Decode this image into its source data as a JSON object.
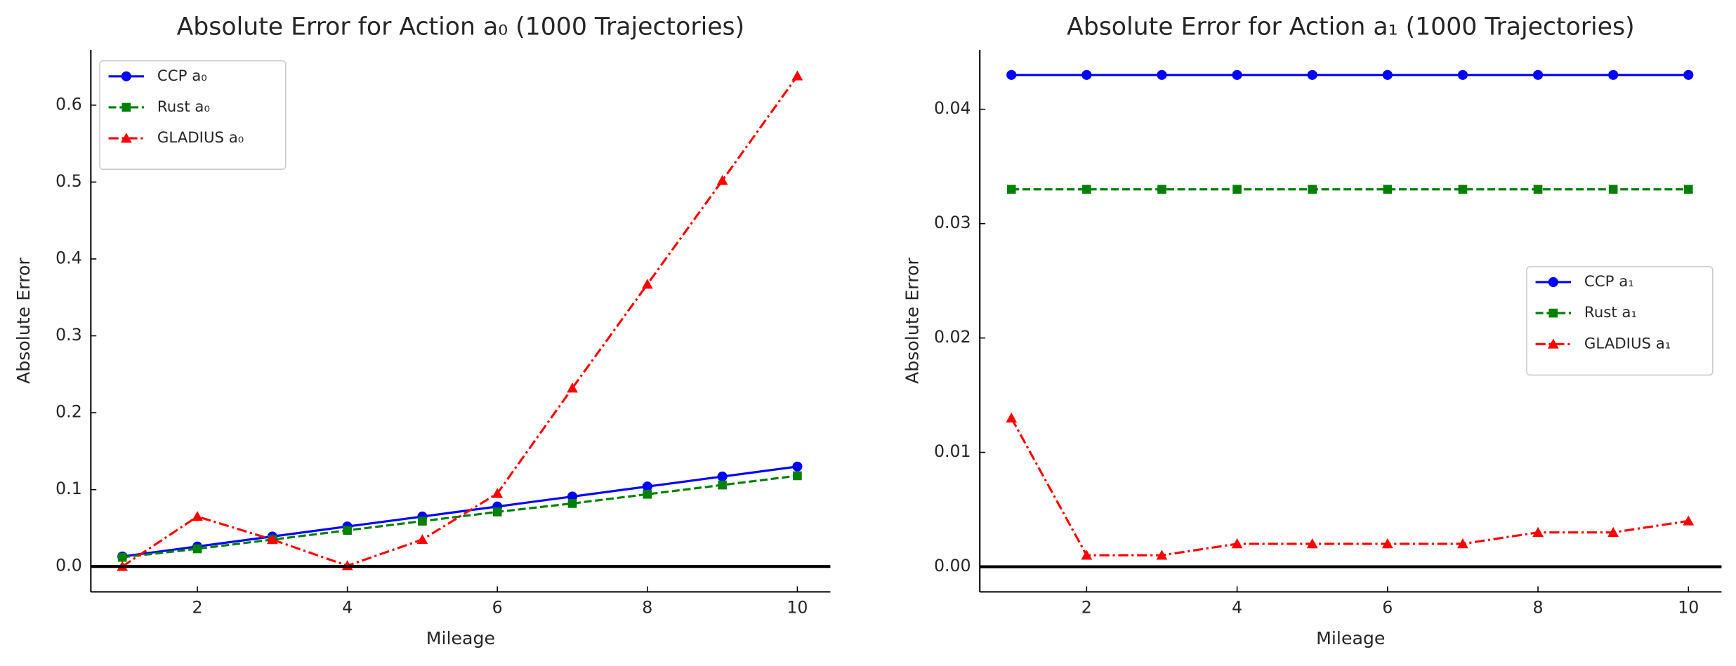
{
  "chart_data": [
    {
      "type": "line",
      "title": "Absolute Error for Action a₀ (1000 Trajectories)",
      "x_label": "Mileage",
      "y_label": "Absolute Error",
      "x": [
        1,
        2,
        3,
        4,
        5,
        6,
        7,
        8,
        9,
        10
      ],
      "series": [
        {
          "name": "CCP a₀",
          "color": "#0000ff",
          "style": "solid",
          "marker": "circle",
          "values": [
            0.013,
            0.026,
            0.039,
            0.052,
            0.065,
            0.078,
            0.091,
            0.104,
            0.117,
            0.13
          ]
        },
        {
          "name": "Rust a₀",
          "color": "#008000",
          "style": "dashed",
          "marker": "square",
          "values": [
            0.012,
            0.023,
            0.035,
            0.047,
            0.059,
            0.071,
            0.082,
            0.094,
            0.106,
            0.118
          ]
        },
        {
          "name": "GLADIUS a₀",
          "color": "#ff0000",
          "style": "dashdot",
          "marker": "triangle",
          "values": [
            0.0,
            0.065,
            0.035,
            0.001,
            0.035,
            0.095,
            0.232,
            0.367,
            0.502,
            0.638
          ]
        }
      ],
      "xlim": [
        0.58,
        10.44
      ],
      "xticks": [
        2,
        4,
        6,
        8,
        10
      ],
      "ylim": [
        -0.033,
        0.672
      ],
      "yticks": [
        {
          "value": 0,
          "label": "0.0"
        },
        0.1,
        0.2,
        0.3,
        0.4,
        0.5,
        0.6
      ],
      "legend": "upper left",
      "zero_line": true,
      "grid": false
    },
    {
      "type": "line",
      "title": "Absolute Error for Action a₁ (1000 Trajectories)",
      "x_label": "Mileage",
      "y_label": "Absolute Error",
      "x": [
        1,
        2,
        3,
        4,
        5,
        6,
        7,
        8,
        9,
        10
      ],
      "series": [
        {
          "name": "CCP a₁",
          "color": "#0000ff",
          "style": "solid",
          "marker": "circle",
          "values": [
            0.043,
            0.043,
            0.043,
            0.043,
            0.043,
            0.043,
            0.043,
            0.043,
            0.043,
            0.043
          ]
        },
        {
          "name": "Rust a₁",
          "color": "#008000",
          "style": "dashed",
          "marker": "square",
          "values": [
            0.033,
            0.033,
            0.033,
            0.033,
            0.033,
            0.033,
            0.033,
            0.033,
            0.033,
            0.033
          ]
        },
        {
          "name": "GLADIUS a₁",
          "color": "#ff0000",
          "style": "dashdot",
          "marker": "triangle",
          "values": [
            0.013,
            0.001,
            0.001,
            0.002,
            0.002,
            0.002,
            0.002,
            0.003,
            0.003,
            0.004
          ]
        }
      ],
      "xlim": [
        0.58,
        10.44
      ],
      "xticks": [
        2,
        4,
        6,
        8,
        10
      ],
      "ylim": [
        -0.0022,
        0.0452
      ],
      "yticks": [
        {
          "value": 0,
          "label": "0.00"
        },
        0.01,
        0.02,
        0.03,
        0.04
      ],
      "legend": "center right",
      "zero_line": true,
      "grid": false
    }
  ]
}
